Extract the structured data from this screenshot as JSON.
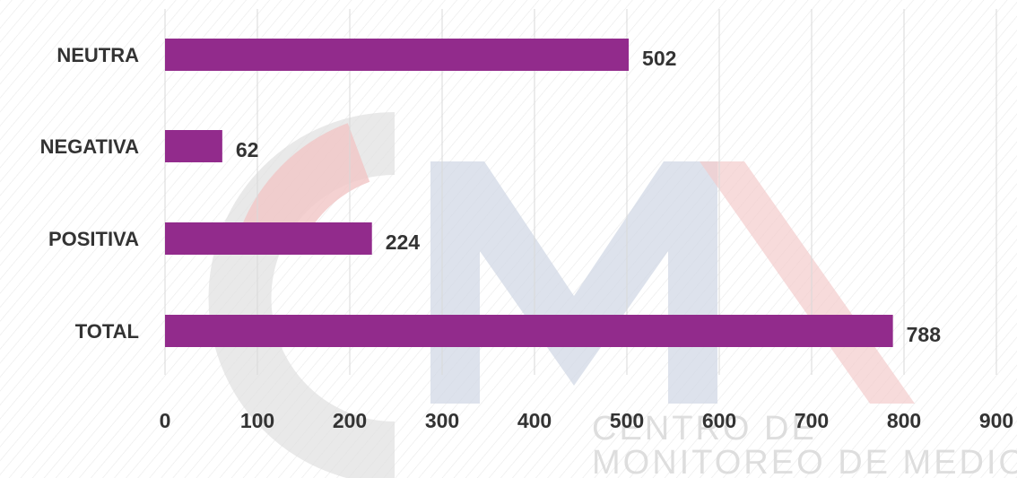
{
  "chart_data": {
    "type": "bar",
    "orientation": "horizontal",
    "title": "",
    "xlabel": "",
    "ylabel": "",
    "categories": [
      "NEUTRA",
      "NEGATIVA",
      "POSITIVA",
      "TOTAL"
    ],
    "values": [
      502,
      62,
      224,
      788
    ],
    "xlim": [
      0,
      900
    ],
    "ticks": [
      0,
      100,
      200,
      300,
      400,
      500,
      600,
      700,
      800,
      900
    ],
    "grid": true,
    "legend": "none",
    "data_labels": true,
    "bar_color": "#922b8c"
  },
  "watermark": {
    "lines": [
      "CENTRO DE",
      "MONITOREO DE MEDIOS"
    ],
    "colors": {
      "gray": "#cfcfcf",
      "red": "#ea9d9d",
      "blue": "#9aa8c4"
    }
  }
}
